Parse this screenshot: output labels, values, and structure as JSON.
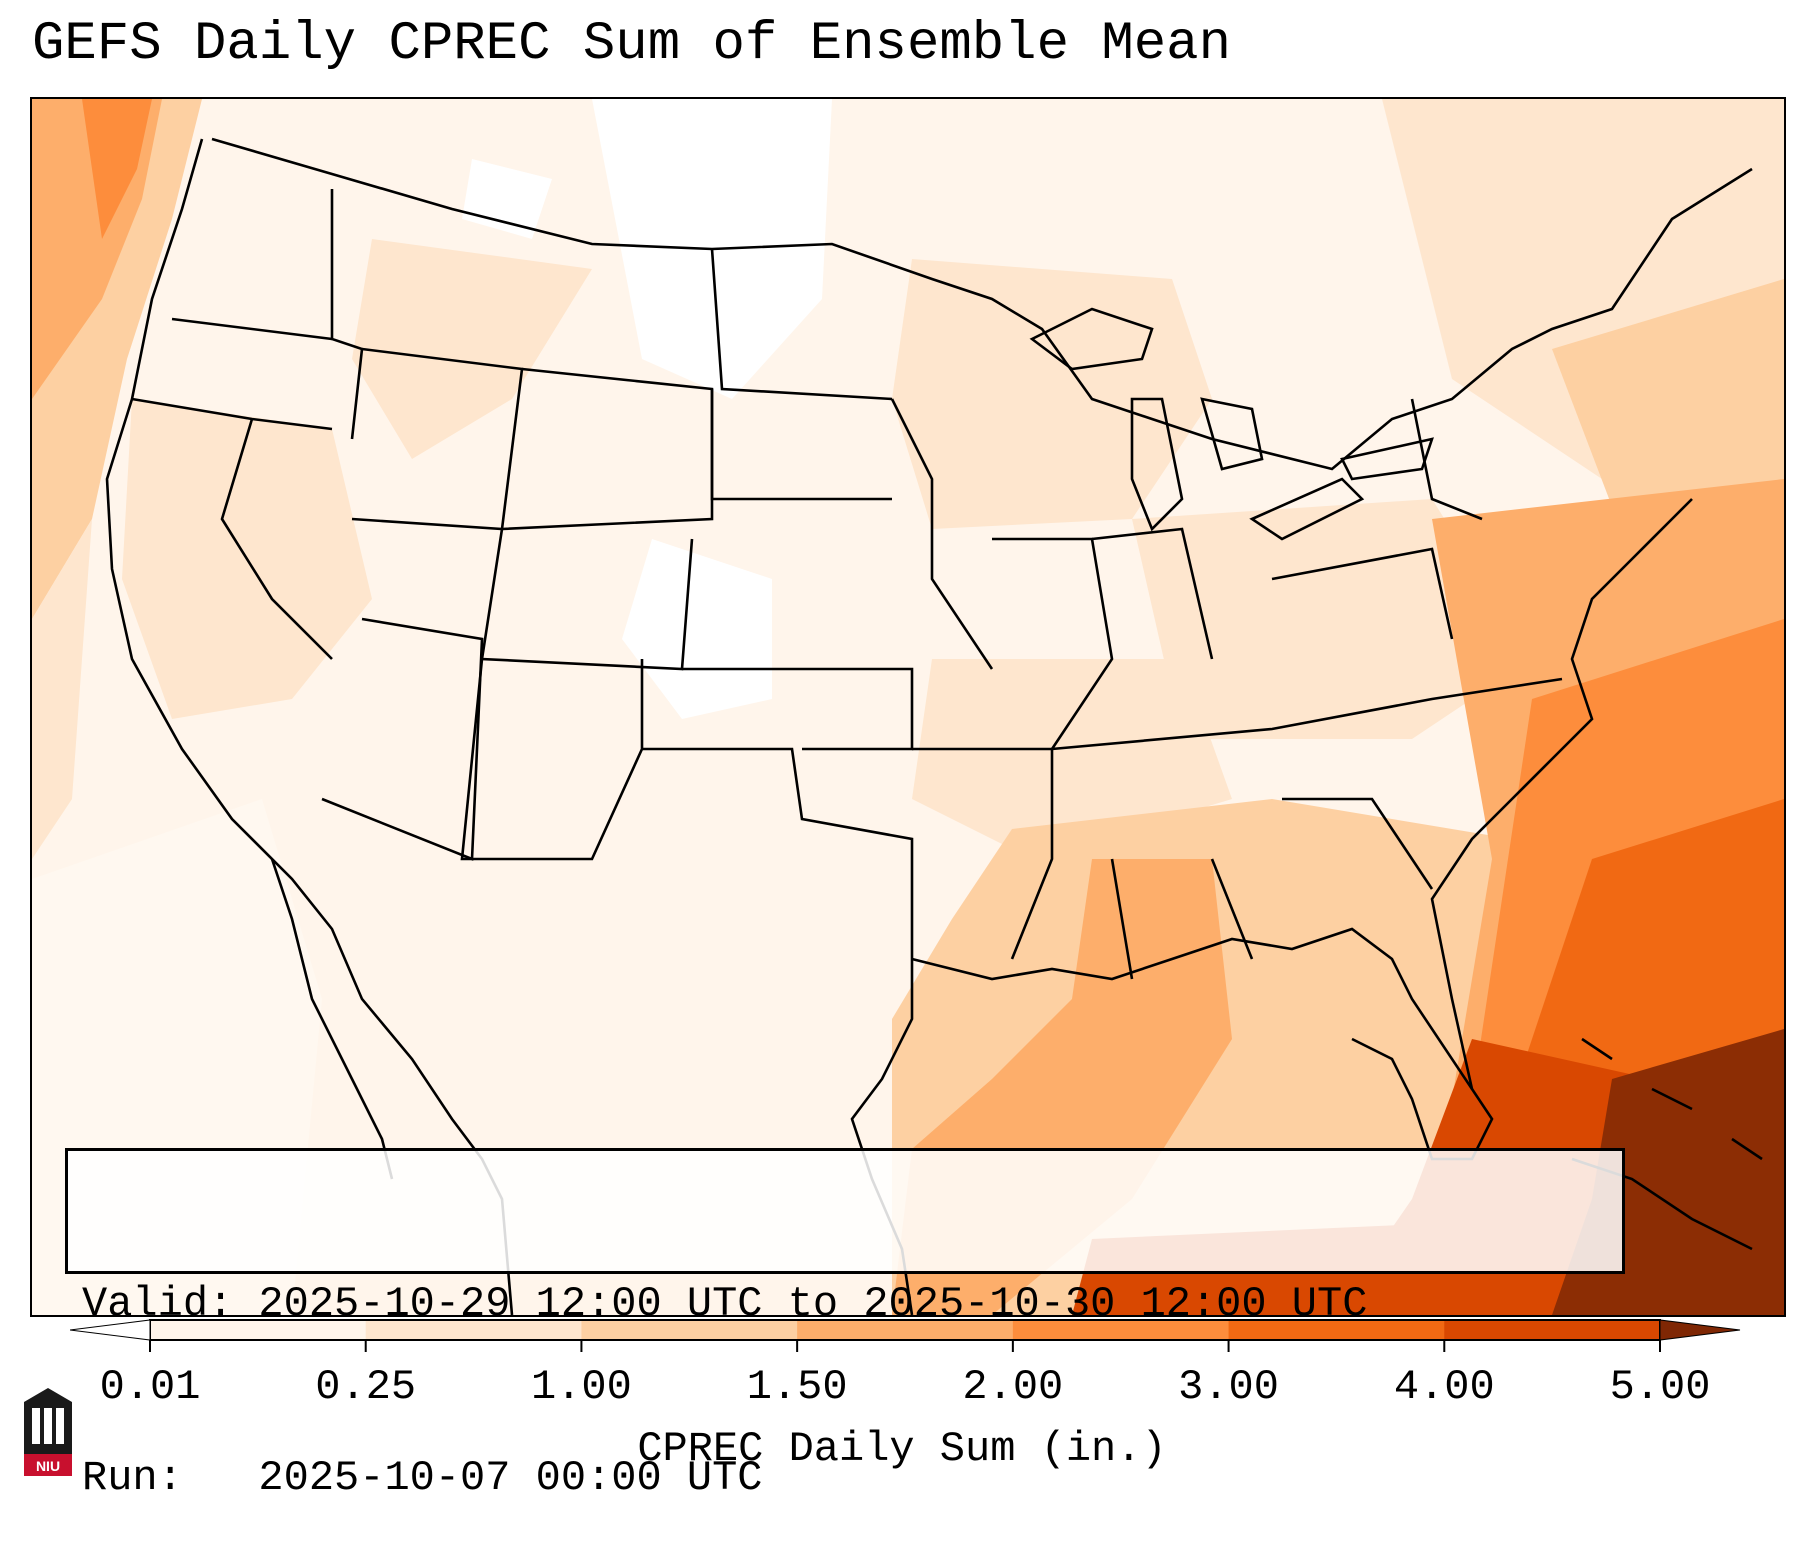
{
  "title": "GEFS Daily CPREC Sum of Ensemble Mean",
  "info": {
    "valid_line": "Valid: 2025-10-29 12:00 UTC to 2025-10-30 12:00 UTC",
    "run_line": "Run:   2025-10-07 00:00 UTC"
  },
  "colorbar": {
    "label": "CPREC Daily Sum (in.)",
    "ticks": [
      "0.01",
      "0.25",
      "1.00",
      "1.50",
      "2.00",
      "3.00",
      "4.00",
      "5.00"
    ],
    "colors": [
      "#fff5eb",
      "#fee6ce",
      "#fdd0a2",
      "#fdae6b",
      "#fd8d3c",
      "#f16913",
      "#d94801",
      "#8c2d04"
    ],
    "extend_under": "#ffffff",
    "extend_over": "#7f2704"
  },
  "logo": {
    "text": "NIU"
  },
  "palette": {
    "white": "#ffffff",
    "c0": "#fff5eb",
    "c1": "#fee6ce",
    "c2": "#fdd0a2",
    "c3": "#fdae6b",
    "c4": "#fd8d3c",
    "c5": "#f16913",
    "c6": "#d94801",
    "c7": "#8c2d04"
  }
}
